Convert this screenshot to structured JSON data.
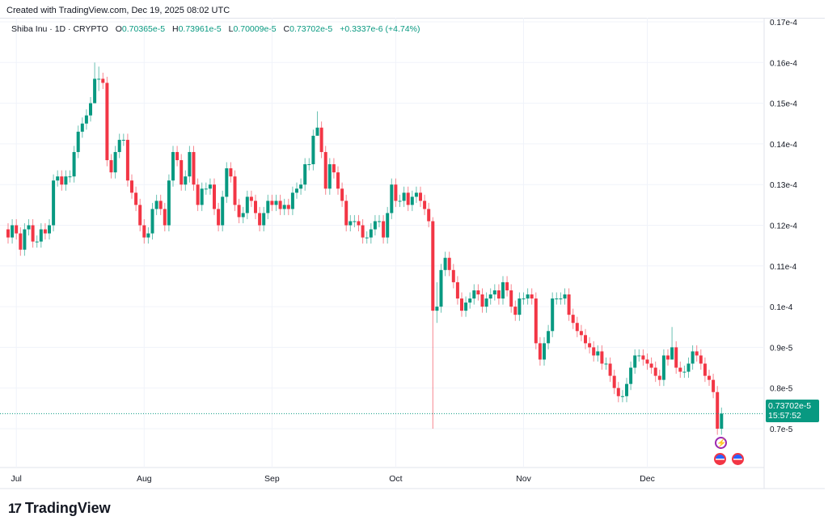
{
  "created": "Created with TradingView.com, Dec 19, 2025 08:02 UTC",
  "legend": {
    "symbol": "Shiba Inu · 1D · CRYPTO",
    "o_label": "O",
    "o": "0.70365e-5",
    "h_label": "H",
    "h": "0.73961e-5",
    "l_label": "L",
    "l": "0.70009e-5",
    "c_label": "C",
    "c": "0.73702e-5",
    "change": "+0.3337e-6 (+4.74%)"
  },
  "price_tag": {
    "price": "0.73702e-5",
    "countdown": "15:57:52"
  },
  "logo": "TradingView",
  "colors": {
    "up": "#089981",
    "down": "#F23645",
    "grid": "#f0f3fa"
  },
  "events": [
    "lightning-icon",
    "us-flag-icon",
    "us-flag-icon"
  ],
  "chart_data": {
    "type": "candlestick",
    "title": "Shiba Inu · 1D · CRYPTO",
    "unit": "e-6",
    "start_date": "2025-06-29",
    "end_date": "2025-12-19",
    "first_open": 11.9,
    "closes": [
      11.7,
      12.0,
      11.8,
      11.4,
      11.9,
      12.0,
      11.6,
      11.6,
      11.9,
      11.8,
      12.0,
      13.1,
      13.2,
      13.0,
      13.2,
      13.2,
      13.8,
      14.3,
      14.5,
      14.7,
      15.0,
      15.6,
      15.6,
      15.5,
      13.6,
      13.3,
      13.8,
      14.1,
      14.1,
      13.1,
      12.8,
      12.5,
      12.0,
      11.7,
      11.8,
      12.4,
      12.6,
      12.4,
      12.0,
      13.1,
      13.8,
      13.6,
      13.0,
      13.2,
      13.8,
      13.0,
      12.5,
      12.9,
      12.9,
      13.0,
      12.4,
      12.0,
      12.7,
      13.4,
      13.2,
      12.5,
      12.2,
      12.3,
      12.7,
      12.6,
      12.3,
      12.0,
      12.3,
      12.6,
      12.5,
      12.6,
      12.4,
      12.5,
      12.4,
      12.8,
      12.9,
      13.0,
      13.5,
      13.5,
      14.2,
      14.4,
      13.8,
      12.9,
      13.5,
      13.3,
      12.9,
      12.6,
      12.0,
      12.1,
      12.1,
      12.0,
      11.7,
      11.7,
      11.9,
      12.1,
      12.1,
      11.7,
      12.3,
      13.0,
      12.6,
      12.6,
      12.8,
      12.5,
      12.7,
      12.8,
      12.6,
      12.4,
      12.1,
      9.9,
      10.0,
      10.9,
      11.2,
      10.9,
      10.6,
      10.2,
      9.9,
      10.1,
      10.2,
      10.4,
      10.3,
      10.0,
      10.2,
      10.3,
      10.4,
      10.2,
      10.6,
      10.4,
      10.0,
      9.8,
      10.2,
      10.2,
      10.3,
      10.2,
      9.1,
      8.7,
      9.1,
      9.4,
      10.2,
      10.2,
      10.2,
      10.3,
      9.8,
      9.6,
      9.4,
      9.3,
      9.1,
      9.0,
      8.8,
      8.9,
      8.6,
      8.6,
      8.3,
      8.0,
      7.8,
      7.8,
      8.1,
      8.5,
      8.8,
      8.8,
      8.7,
      8.6,
      8.5,
      8.3,
      8.2,
      8.8,
      8.7,
      9.0,
      8.5,
      8.4,
      8.4,
      8.6,
      8.9,
      8.8,
      8.6,
      8.3,
      8.2,
      7.9,
      7.0,
      7.37
    ],
    "wick_overrides": {
      "21": [
        16.0,
        15.0
      ],
      "22": [
        15.9,
        15.3
      ],
      "75": [
        14.8,
        14.3
      ],
      "103": [
        12.2,
        7.0
      ],
      "104": [
        10.6,
        9.6
      ],
      "161": [
        9.5,
        8.8
      ]
    },
    "y_ticks": [
      "0.17e-4",
      "0.16e-4",
      "0.15e-4",
      "0.14e-4",
      "0.13e-4",
      "0.12e-4",
      "0.11e-4",
      "0.1e-4",
      "0.9e-5",
      "0.8e-5",
      "0.7e-5"
    ],
    "y_tick_values": [
      17,
      16,
      15,
      14,
      13,
      12,
      11,
      10,
      9,
      8,
      7
    ],
    "x_ticks": [
      "Jul",
      "Aug",
      "Sep",
      "Oct",
      "Nov",
      "Dec"
    ],
    "x_tick_index": [
      2,
      33,
      64,
      94,
      125,
      155
    ],
    "last_price": 7.3702
  }
}
